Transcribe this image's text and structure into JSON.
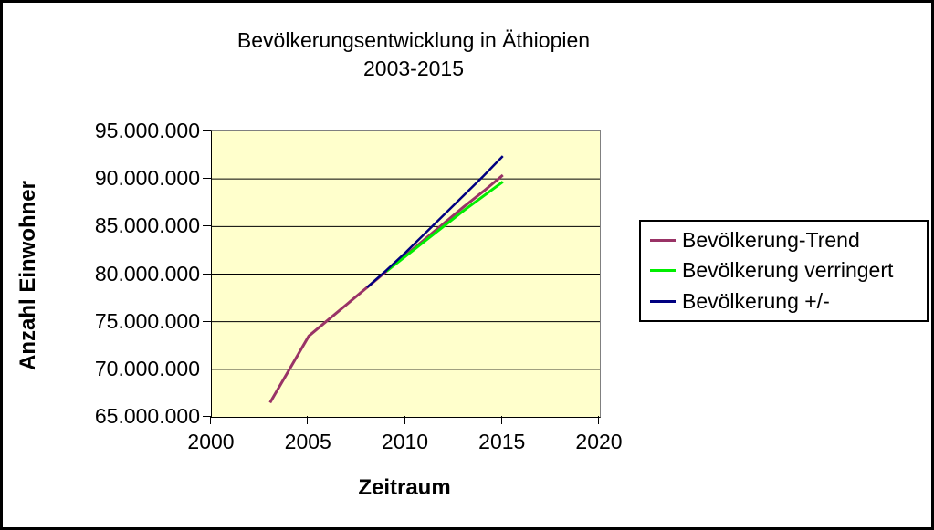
{
  "chart": {
    "title_line1": "Bevölkerungsentwicklung in Äthiopien",
    "title_line2": "2003-2015",
    "y_axis_title": "Anzahl Einwohner",
    "x_axis_title": "Zeitraum"
  },
  "chart_data": {
    "type": "line",
    "title": "Bevölkerungsentwicklung in Äthiopien 2003-2015",
    "xlabel": "Zeitraum",
    "ylabel": "Anzahl Einwohner",
    "xlim": [
      2000,
      2020
    ],
    "ylim": [
      65000000,
      95000000
    ],
    "x_tick_labels": [
      "2000",
      "2005",
      "2010",
      "2015",
      "2020"
    ],
    "y_tick_labels": [
      "95.000.000",
      "90.000.000",
      "85.000.000",
      "80.000.000",
      "75.000.000",
      "70.000.000",
      "65.000.000"
    ],
    "grid": "horizontal-black",
    "plot_background": "#FFFFCC",
    "legend_position": "right",
    "series": [
      {
        "name": "Bevölkerung-Trend",
        "color": "#993366",
        "x": [
          2003,
          2004,
          2005,
          2006,
          2007,
          2008,
          2009,
          2010,
          2011,
          2012,
          2013,
          2014,
          2015
        ],
        "values": [
          66500000,
          70000000,
          73500000,
          75200000,
          76900000,
          78600000,
          80300000,
          82000000,
          83700000,
          85400000,
          87100000,
          88700000,
          90400000
        ]
      },
      {
        "name": "Bevölkerung verringert",
        "color": "#00EE00",
        "x": [
          2009,
          2010,
          2011,
          2012,
          2013,
          2014,
          2015
        ],
        "values": [
          80300000,
          81900000,
          83500000,
          85100000,
          86700000,
          88200000,
          89700000
        ]
      },
      {
        "name": "Bevölkerung +/-",
        "color": "#000080",
        "x": [
          2008,
          2009,
          2010,
          2011,
          2012,
          2013,
          2014,
          2015
        ],
        "values": [
          78600000,
          80400000,
          82300000,
          84300000,
          86300000,
          88300000,
          90300000,
          92400000
        ]
      }
    ]
  }
}
